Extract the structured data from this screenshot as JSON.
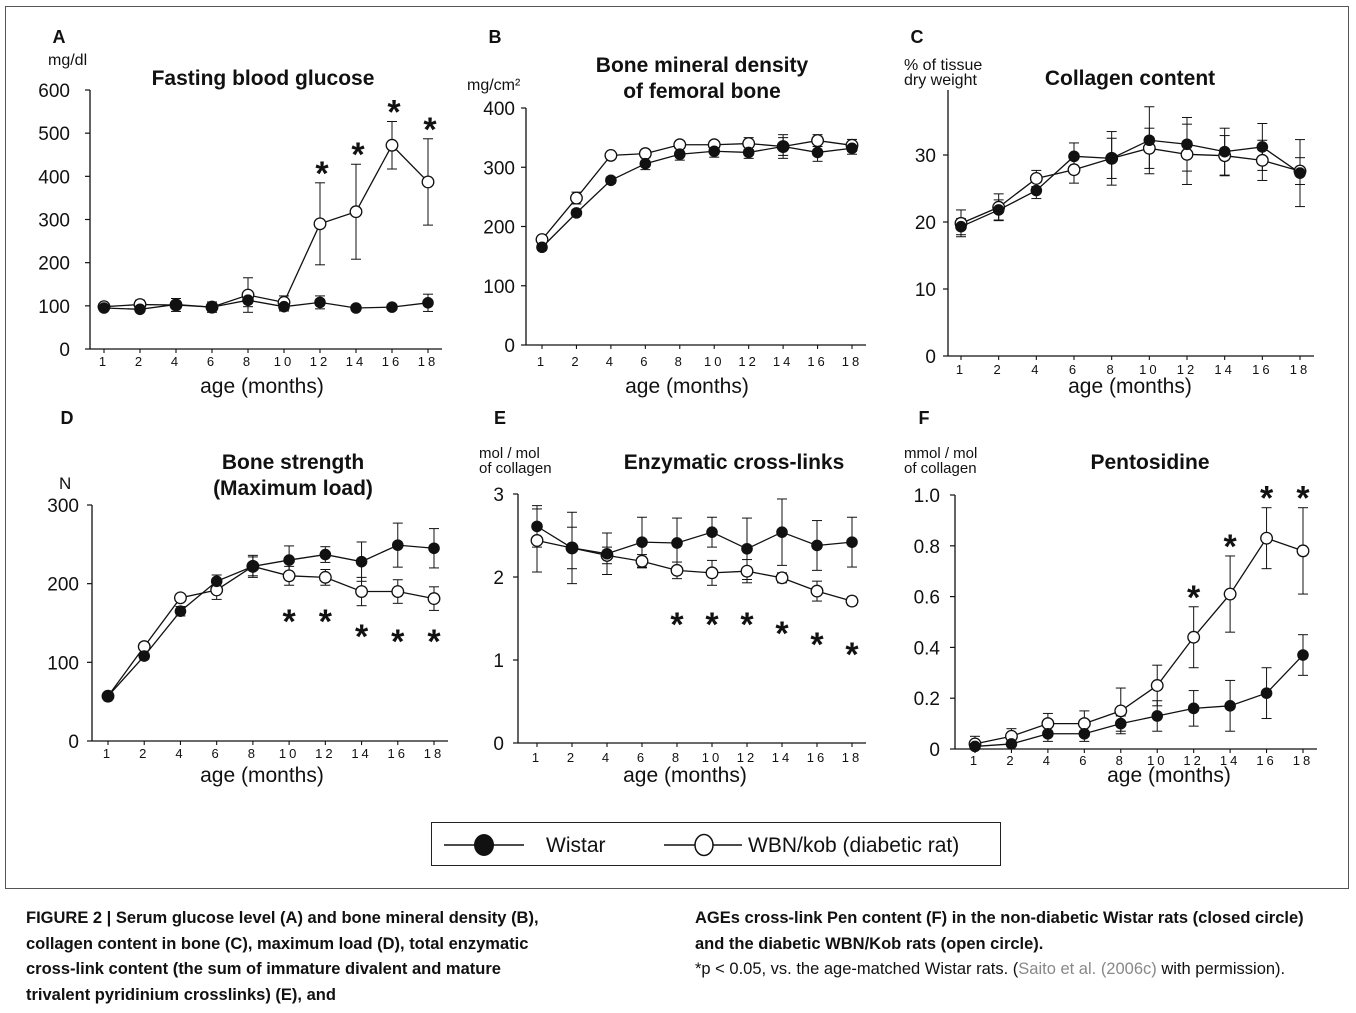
{
  "chart_data": [
    {
      "panel": "A",
      "type": "line",
      "title": "Fasting blood glucose",
      "unit": "mg/dl",
      "ylabel": "",
      "xlabel": "age (months)",
      "categories": [
        "1",
        "2",
        "4",
        "6",
        "8",
        "10",
        "12",
        "14",
        "16",
        "18"
      ],
      "ylim": [
        0,
        600
      ],
      "yticks": [
        0,
        100,
        200,
        300,
        400,
        500,
        600
      ],
      "series": [
        {
          "name": "Wistar",
          "values": [
            95,
            92,
            103,
            97,
            113,
            98,
            108,
            95,
            97,
            107
          ],
          "err": [
            5,
            5,
            8,
            8,
            15,
            10,
            15,
            5,
            5,
            20
          ]
        },
        {
          "name": "WBN/kob (diabetic rat)",
          "values": [
            98,
            103,
            102,
            97,
            125,
            108,
            290,
            318,
            472,
            387
          ],
          "err": [
            5,
            10,
            15,
            12,
            40,
            15,
            95,
            110,
            55,
            100
          ]
        }
      ],
      "significant": [
        "12",
        "14",
        "16",
        "18"
      ]
    },
    {
      "panel": "B",
      "type": "line",
      "title": "Bone mineral density of femoral bone",
      "title_lines": [
        "Bone mineral density",
        "of femoral bone"
      ],
      "unit": "mg/cm²",
      "ylabel": "",
      "xlabel": "age (months)",
      "categories": [
        "1",
        "2",
        "4",
        "6",
        "8",
        "10",
        "12",
        "14",
        "16",
        "18"
      ],
      "ylim": [
        0,
        400
      ],
      "yticks": [
        0,
        100,
        200,
        300,
        400
      ],
      "series": [
        {
          "name": "Wistar",
          "values": [
            165,
            223,
            278,
            306,
            322,
            327,
            325,
            335,
            325,
            332
          ],
          "err": [
            5,
            5,
            5,
            10,
            10,
            10,
            10,
            15,
            15,
            10
          ]
        },
        {
          "name": "WBN/kob (diabetic rat)",
          "values": [
            178,
            248,
            320,
            323,
            338,
            338,
            340,
            335,
            345,
            337
          ],
          "err": [
            5,
            10,
            5,
            5,
            5,
            5,
            10,
            20,
            10,
            10
          ]
        }
      ],
      "significant": []
    },
    {
      "panel": "C",
      "type": "line",
      "title": "Collagen content",
      "unit": "% of tissue dry weight",
      "unit_lines": [
        "% of tissue",
        "dry weight"
      ],
      "ylabel": "",
      "xlabel": "age (months)",
      "categories": [
        "1",
        "2",
        "4",
        "6",
        "8",
        "10",
        "12",
        "14",
        "16",
        "18"
      ],
      "ylim": [
        0,
        40
      ],
      "yticks": [
        0,
        10,
        20,
        30
      ],
      "series": [
        {
          "name": "Wistar",
          "values": [
            19.3,
            21.8,
            24.7,
            29.8,
            29.5,
            32.2,
            31.6,
            30.5,
            31.2,
            27.3
          ],
          "err": [
            1.2,
            1.5,
            1.2,
            2,
            3,
            5,
            4,
            3.5,
            3.5,
            5
          ]
        },
        {
          "name": "WBN/kob (diabetic rat)",
          "values": [
            19.8,
            22.2,
            26.5,
            27.8,
            29.5,
            31,
            30.1,
            29.9,
            29.2,
            27.6
          ],
          "err": [
            2,
            2,
            1.2,
            2,
            4,
            3,
            4.5,
            3,
            3,
            2
          ]
        }
      ],
      "significant": []
    },
    {
      "panel": "D",
      "type": "line",
      "title": "Bone strength (Maximum load)",
      "title_lines": [
        "Bone strength",
        "(Maximum load)"
      ],
      "unit": "N",
      "ylabel": "",
      "xlabel": "age (months)",
      "categories": [
        "1",
        "2",
        "4",
        "6",
        "8",
        "10",
        "12",
        "14",
        "16",
        "18"
      ],
      "ylim": [
        0,
        300
      ],
      "yticks": [
        0,
        100,
        200,
        300
      ],
      "series": [
        {
          "name": "Wistar",
          "values": [
            57,
            108,
            165,
            203,
            222,
            230,
            237,
            228,
            249,
            245
          ],
          "err": [
            2,
            4,
            6,
            8,
            14,
            18,
            10,
            25,
            28,
            25
          ]
        },
        {
          "name": "WBN/kob (diabetic rat)",
          "values": [
            57,
            120,
            182,
            192,
            222,
            210,
            208,
            190,
            190,
            181
          ],
          "err": [
            2,
            4,
            4,
            12,
            12,
            12,
            10,
            18,
            15,
            15
          ]
        }
      ],
      "significant": [
        "10",
        "12",
        "14",
        "16",
        "18"
      ]
    },
    {
      "panel": "E",
      "type": "line",
      "title": "Enzymatic cross-links",
      "unit": "mol / mol of collagen",
      "unit_lines": [
        "mol / mol",
        "of collagen"
      ],
      "ylabel": "",
      "xlabel": "age (months)",
      "categories": [
        "1",
        "2",
        "4",
        "6",
        "8",
        "10",
        "12",
        "14",
        "16",
        "18"
      ],
      "ylim": [
        0,
        3.0
      ],
      "yticks": [
        0,
        1.0,
        2.0,
        3.0
      ],
      "series": [
        {
          "name": "Wistar",
          "values": [
            2.61,
            2.35,
            2.28,
            2.42,
            2.41,
            2.54,
            2.34,
            2.54,
            2.38,
            2.42
          ],
          "err": [
            0.25,
            0.25,
            0.25,
            0.3,
            0.3,
            0.18,
            0.37,
            0.4,
            0.3,
            0.3
          ]
        },
        {
          "name": "WBN/kob (diabetic rat)",
          "values": [
            2.44,
            2.35,
            2.26,
            2.19,
            2.08,
            2.05,
            2.07,
            1.99,
            1.83,
            1.71
          ],
          "err": [
            0.38,
            0.43,
            0.1,
            0.08,
            0.1,
            0.15,
            0.14,
            0.06,
            0.12,
            0.05
          ]
        }
      ],
      "significant": [
        "8",
        "10",
        "12",
        "14",
        "16",
        "18"
      ]
    },
    {
      "panel": "F",
      "type": "line",
      "title": "Pentosidine",
      "unit": "mmol / mol of collagen",
      "unit_lines": [
        "mmol / mol",
        "of collagen"
      ],
      "ylabel": "",
      "xlabel": "age (months)",
      "categories": [
        "1",
        "2",
        "4",
        "6",
        "8",
        "10",
        "12",
        "14",
        "16",
        "18"
      ],
      "ylim": [
        0,
        1.0
      ],
      "yticks": [
        "0",
        "0.2",
        "0.4",
        "0.6",
        "0.8",
        "1.0"
      ],
      "series": [
        {
          "name": "Wistar",
          "values": [
            0.01,
            0.02,
            0.06,
            0.06,
            0.1,
            0.13,
            0.16,
            0.17,
            0.22,
            0.37
          ],
          "err": [
            0.01,
            0.02,
            0.03,
            0.03,
            0.03,
            0.06,
            0.07,
            0.1,
            0.1,
            0.08
          ]
        },
        {
          "name": "WBN/kob (diabetic rat)",
          "values": [
            0.02,
            0.05,
            0.1,
            0.1,
            0.15,
            0.25,
            0.44,
            0.61,
            0.83,
            0.78
          ],
          "err": [
            0.03,
            0.03,
            0.04,
            0.05,
            0.09,
            0.08,
            0.12,
            0.15,
            0.12,
            0.17
          ]
        }
      ],
      "significant": [
        "12",
        "14",
        "16",
        "18"
      ]
    }
  ],
  "legend": {
    "wistar": "Wistar",
    "wbn": "WBN/kob (diabetic rat)"
  },
  "caption": {
    "left": "FIGURE 2 | Serum glucose level (A) and bone mineral density (B), collagen content in bone (C), maximum load (D), total enzymatic cross-link content (the sum of immature divalent and mature trivalent pyridinium crosslinks) (E), and",
    "right_bold": "AGEs cross-link Pen content (F) in the non-diabetic Wistar rats (closed circle) and the diabetic WBN/Kob rats (open circle).",
    "right_note": "*p < 0.05, vs. the age-matched Wistar rats. (",
    "right_ref": "Saito et al. (2006c)",
    "right_end": " with permission)."
  }
}
